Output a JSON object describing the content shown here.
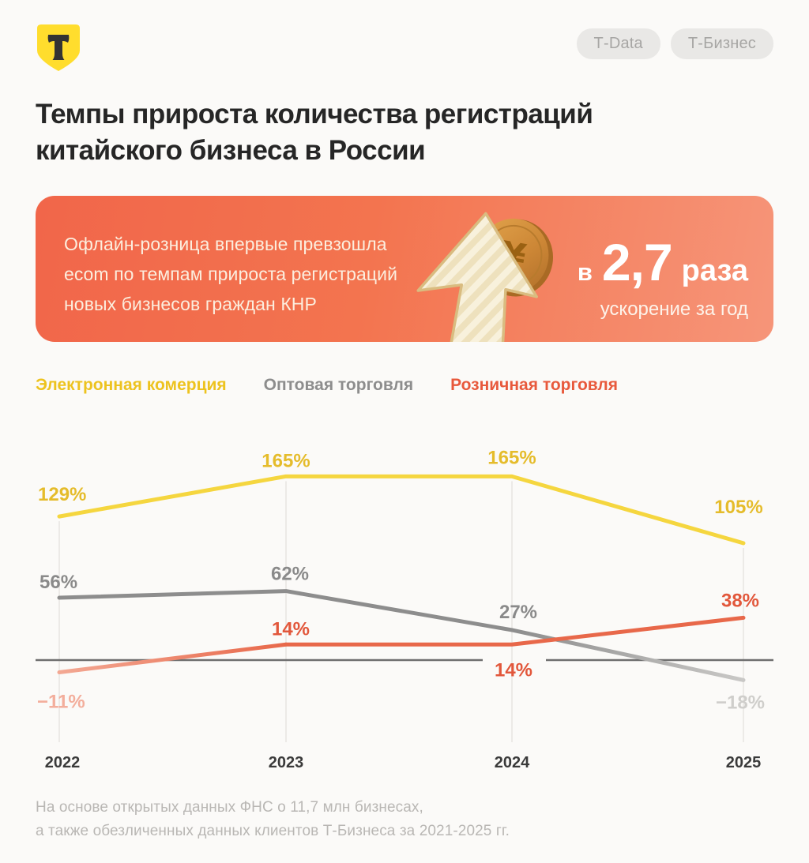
{
  "page": {
    "background": "#fbfaf8"
  },
  "header": {
    "logo": {
      "name": "t-bank-shield-logo",
      "letter": "Т",
      "shield_color": "#ffdd2d",
      "letter_color": "#333333"
    },
    "badges": [
      {
        "label": "Т-Data"
      },
      {
        "label": "Т-Бизнес"
      }
    ]
  },
  "title": {
    "line1": "Темпы прироста количества регистраций",
    "line2": "китайского бизнеса в России"
  },
  "banner": {
    "text_line1": "Офлайн-розница впервые превзошла",
    "text_line2": "ecom по темпам прироста регистраций",
    "text_line3": "новых бизнесов граждан КНР",
    "stat_prefix": "в",
    "stat_value": "2,7",
    "stat_suffix": "раза",
    "stat_caption": "ускорение за год",
    "coin_symbol": "¥",
    "colors": {
      "gradient_left": "#f1664a",
      "gradient_right": "#f69579",
      "text": "#fceede"
    }
  },
  "legend": [
    {
      "label": "Электронная комерция",
      "color": "#edc31f"
    },
    {
      "label": "Оптовая торговля",
      "color": "#8d8d8d"
    },
    {
      "label": "Розничная торговля",
      "color": "#e8593c"
    }
  ],
  "chart_data": {
    "type": "line",
    "categories": [
      "2022",
      "2023",
      "2024",
      "2025"
    ],
    "series": [
      {
        "name": "Электронная комерция",
        "values": [
          129,
          165,
          165,
          105
        ],
        "labels": [
          "129%",
          "165%",
          "165%",
          "105%"
        ],
        "line_color": "#f5d63f",
        "label_color": "#e5bc2b",
        "fade": null,
        "fade_color": null,
        "faded_label_color": null,
        "faded_points": []
      },
      {
        "name": "Оптовая торговля",
        "values": [
          56,
          62,
          27,
          -18
        ],
        "labels": [
          "56%",
          "62%",
          "27%",
          "−18%"
        ],
        "line_color": "#8d8d8d",
        "label_color": "#8a8a8a",
        "fade": "last",
        "fade_color": "#c9c8c6",
        "faded_label_color": "#cfcecb",
        "faded_points": [
          3
        ]
      },
      {
        "name": "Розничная торговля",
        "values": [
          -11,
          14,
          14,
          38
        ],
        "labels": [
          "−11%",
          "14%",
          "14%",
          "38%"
        ],
        "line_color": "#e8684a",
        "label_color": "#e2573b",
        "fade": "first",
        "fade_color": "#f3a893",
        "faded_label_color": "#f3ae9c",
        "faded_points": [
          0
        ]
      }
    ],
    "baseline": 0,
    "axis_color": "#6f6f6f",
    "gridline_color": "#e7e4e1",
    "tick_label_color": "#3a3a3a",
    "grid": "vertical-per-year",
    "legend_position": "top",
    "ylim": [
      -40,
      200
    ]
  },
  "footer": {
    "line1": "На основе открытых данных ФНС о 11,7 млн бизнесах,",
    "line2": "а также обезличенных данных клиентов Т-Бизнеса за 2021-2025 гг."
  }
}
